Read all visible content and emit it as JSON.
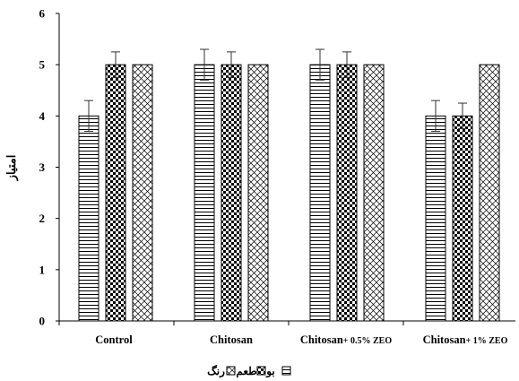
{
  "chart_data": {
    "type": "bar",
    "ylabel": "امتیاز",
    "xlabel": "",
    "ylim": [
      0,
      6
    ],
    "yticks": [
      "0",
      "1",
      "2",
      "3",
      "4",
      "5",
      "6"
    ],
    "grid": false,
    "legend_position": "bottom-center",
    "categories": [
      {
        "main": "Control",
        "suffix": ""
      },
      {
        "main": "Chitosan",
        "suffix": ""
      },
      {
        "main": "Chitosan",
        "suffix": "+ 0.5% ZEO"
      },
      {
        "main": "Chitosan",
        "suffix": "+ 1% ZEO"
      }
    ],
    "series": [
      {
        "name": "بو",
        "pattern": "horizontal-lines",
        "values": [
          4,
          5,
          5,
          4
        ],
        "errors": [
          0.3,
          0.3,
          0.3,
          0.3
        ]
      },
      {
        "name": "طعم",
        "pattern": "checkerboard",
        "values": [
          5,
          5,
          5,
          4
        ],
        "errors": [
          0.25,
          0.25,
          0.25,
          0.25
        ]
      },
      {
        "name": "رنگ",
        "pattern": "crosshatch",
        "values": [
          5,
          5,
          5,
          5
        ],
        "errors": [
          0,
          0,
          0,
          0
        ]
      }
    ]
  }
}
